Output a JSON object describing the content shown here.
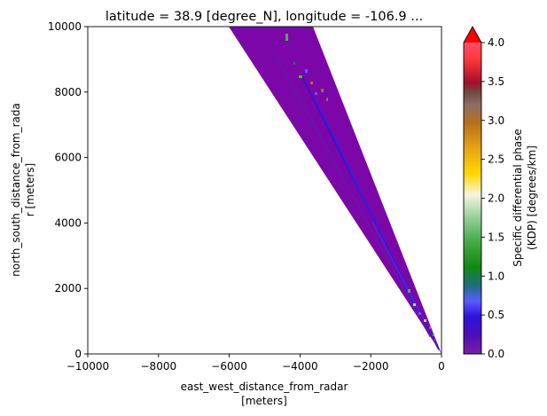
{
  "chart_data": {
    "type": "heatmap",
    "title": "latitude = 38.9 [degree_N], longitude = -106.9 ...",
    "xlabel": "east_west_distance_from_radar",
    "xunit": "[meters]",
    "ylabel": "north_south_distance_from_rada",
    "yunit": "r [meters]",
    "xlim": [
      -10000,
      0
    ],
    "ylim": [
      0,
      10000
    ],
    "xticks": [
      -10000,
      -8000,
      -6000,
      -4000,
      -2000,
      0
    ],
    "yticks": [
      0,
      2000,
      4000,
      6000,
      8000,
      10000
    ],
    "colorbar": {
      "label_line1": "Specific differential phase",
      "label_line2": "(KDP) [degrees/km]",
      "range": [
        0.0,
        4.0
      ],
      "ticks": [
        "0.0",
        "0.5",
        "1.0",
        "1.5",
        "2.0",
        "2.5",
        "3.0",
        "3.5",
        "4.0"
      ],
      "extend": "max",
      "colors": [
        "#7b1fa2",
        "#4b0fb8",
        "#2d12d8",
        "#5a5cff",
        "#1f6e7e",
        "#0f8a0f",
        "#4caf50",
        "#a5d6a7",
        "#f5f5dc",
        "#ffd700",
        "#e8a317",
        "#b8701a",
        "#8d6e63",
        "#6d4c41",
        "#a0102a",
        "#ff3b3b",
        "#ff0000"
      ]
    },
    "sector": {
      "value_range": [
        0.0,
        0.3
      ],
      "dominant_color": "#7b07a8"
    }
  }
}
